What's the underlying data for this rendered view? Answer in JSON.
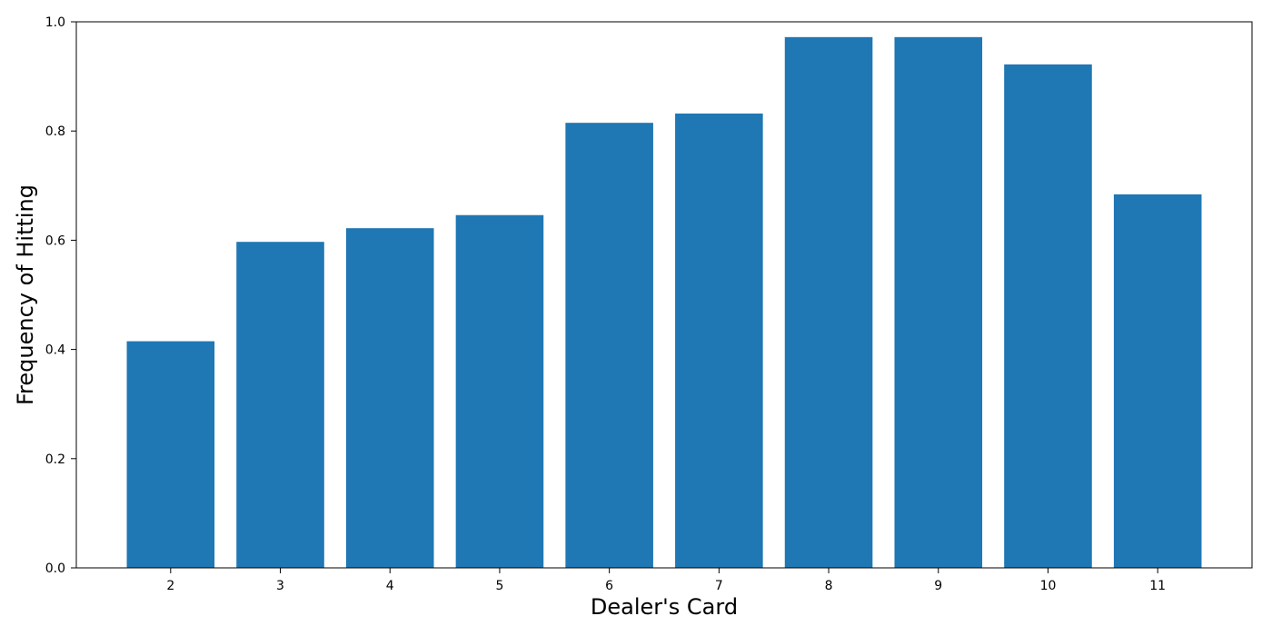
{
  "chart_data": {
    "type": "bar",
    "title": "",
    "xlabel": "Dealer's Card",
    "ylabel": "Frequency of Hitting",
    "categories": [
      "2",
      "3",
      "4",
      "5",
      "6",
      "7",
      "8",
      "9",
      "10",
      "11"
    ],
    "values": [
      0.415,
      0.597,
      0.622,
      0.646,
      0.815,
      0.832,
      0.972,
      0.972,
      0.922,
      0.684
    ],
    "ylim": [
      0,
      1.0
    ],
    "yticks": [
      "0.0",
      "0.2",
      "0.4",
      "0.6",
      "0.8",
      "1.0"
    ],
    "grid": false,
    "legend": "none",
    "bar_color": "#1f77b4",
    "axis_color": "#000000"
  }
}
